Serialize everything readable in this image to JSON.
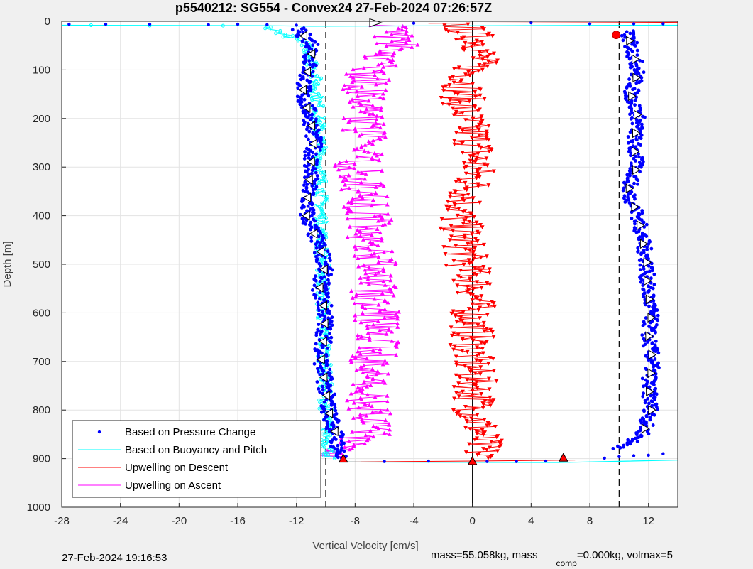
{
  "chart_data": {
    "type": "scatter",
    "title": "p5540212: SG554 - Convex24 27-Feb-2024 07:26:57Z",
    "xlabel": "Vertical Velocity [cm/s]",
    "ylabel": "Depth [m]",
    "xlim": [
      -28,
      14
    ],
    "ylim": [
      0,
      1000
    ],
    "y_reversed": true,
    "x_ticks": [
      -28,
      -24,
      -20,
      -16,
      -12,
      -8,
      -4,
      0,
      4,
      8,
      12
    ],
    "y_ticks": [
      0,
      100,
      200,
      300,
      400,
      500,
      600,
      700,
      800,
      900,
      1000
    ],
    "grid": true,
    "legend_position": "bottom-left",
    "reference_lines": [
      {
        "x": -10,
        "style": "dashed"
      },
      {
        "x": 0,
        "style": "solid"
      },
      {
        "x": 10,
        "style": "dashed"
      }
    ],
    "series": [
      {
        "name": "Based on Pressure Change",
        "color": "#0000ff",
        "marker": "dot",
        "descent_profile": [
          [
            0,
            -12.5
          ],
          [
            50,
            -10.8
          ],
          [
            100,
            -11.2
          ],
          [
            150,
            -11.6
          ],
          [
            200,
            -11.0
          ],
          [
            250,
            -10.8
          ],
          [
            300,
            -11.0
          ],
          [
            350,
            -11.2
          ],
          [
            400,
            -11.3
          ],
          [
            450,
            -10.6
          ],
          [
            500,
            -10.0
          ],
          [
            550,
            -10.4
          ],
          [
            600,
            -10.0
          ],
          [
            650,
            -10.1
          ],
          [
            700,
            -10.3
          ],
          [
            750,
            -10.0
          ],
          [
            800,
            -9.8
          ],
          [
            850,
            -9.3
          ],
          [
            900,
            -9.0
          ]
        ],
        "ascent_profile": [
          [
            900,
            9.0
          ],
          [
            850,
            11.6
          ],
          [
            800,
            12.2
          ],
          [
            750,
            12.0
          ],
          [
            700,
            12.3
          ],
          [
            650,
            12.0
          ],
          [
            600,
            12.2
          ],
          [
            550,
            11.9
          ],
          [
            500,
            11.9
          ],
          [
            450,
            11.6
          ],
          [
            400,
            11.3
          ],
          [
            350,
            10.6
          ],
          [
            300,
            11.2
          ],
          [
            250,
            11.0
          ],
          [
            200,
            11.3
          ],
          [
            150,
            10.8
          ],
          [
            100,
            11.3
          ],
          [
            50,
            10.8
          ],
          [
            20,
            10.5
          ]
        ]
      },
      {
        "name": "Based on Buoyancy and Pitch",
        "color": "#00ffff",
        "marker": "circle",
        "descent_profile": [
          [
            10,
            -14.0
          ],
          [
            50,
            -11.2
          ],
          [
            100,
            -10.8
          ],
          [
            150,
            -10.6
          ],
          [
            200,
            -10.5
          ],
          [
            250,
            -10.4
          ],
          [
            300,
            -10.4
          ],
          [
            350,
            -10.3
          ],
          [
            400,
            -10.3
          ],
          [
            450,
            -10.3
          ],
          [
            500,
            -10.2
          ],
          [
            550,
            -10.2
          ],
          [
            600,
            -10.2
          ],
          [
            650,
            -10.1
          ],
          [
            700,
            -10.1
          ],
          [
            750,
            -10.0
          ],
          [
            800,
            -10.0
          ],
          [
            850,
            -9.9
          ],
          [
            900,
            -9.7
          ]
        ],
        "ascent_profile": [
          [
            900,
            9.0
          ],
          [
            850,
            11.2
          ],
          [
            800,
            11.4
          ],
          [
            700,
            11.4
          ],
          [
            600,
            11.5
          ],
          [
            500,
            11.5
          ],
          [
            400,
            11.4
          ],
          [
            300,
            11.2
          ],
          [
            200,
            11.2
          ],
          [
            100,
            11.0
          ],
          [
            20,
            10.8
          ]
        ]
      },
      {
        "name": "Upwelling on Descent",
        "color": "#ff0000",
        "marker": "triangle-down",
        "profile": [
          [
            5,
            -1.0
          ],
          [
            50,
            0.8
          ],
          [
            100,
            0.0
          ],
          [
            150,
            -0.7
          ],
          [
            200,
            -0.5
          ],
          [
            250,
            0.2
          ],
          [
            300,
            0.2
          ],
          [
            350,
            -0.1
          ],
          [
            400,
            -1.0
          ],
          [
            450,
            -0.6
          ],
          [
            500,
            -0.4
          ],
          [
            550,
            0.3
          ],
          [
            600,
            0.0
          ],
          [
            650,
            0.0
          ],
          [
            700,
            -0.1
          ],
          [
            750,
            0.2
          ],
          [
            800,
            0.2
          ],
          [
            850,
            0.6
          ],
          [
            900,
            0.5
          ]
        ]
      },
      {
        "name": "Upwelling on Ascent",
        "color": "#ff00ff",
        "marker": "triangle-up",
        "profile": [
          [
            900,
            -10.5
          ],
          [
            850,
            -7.0
          ],
          [
            800,
            -7.0
          ],
          [
            750,
            -7.3
          ],
          [
            700,
            -7.0
          ],
          [
            650,
            -6.2
          ],
          [
            600,
            -6.5
          ],
          [
            550,
            -6.8
          ],
          [
            500,
            -6.8
          ],
          [
            450,
            -7.0
          ],
          [
            400,
            -7.0
          ],
          [
            350,
            -7.5
          ],
          [
            300,
            -7.8
          ],
          [
            250,
            -7.5
          ],
          [
            200,
            -7.5
          ],
          [
            150,
            -7.3
          ],
          [
            100,
            -7.0
          ],
          [
            50,
            -5.0
          ],
          [
            5,
            -6.0
          ]
        ]
      }
    ]
  },
  "footer": {
    "datetime": "27-Feb-2024 19:16:53",
    "mass": "mass=55.058kg, mass",
    "mass_comp_sub": "comp",
    "mass_comp_tail": "=0.000kg, volmax=5"
  }
}
